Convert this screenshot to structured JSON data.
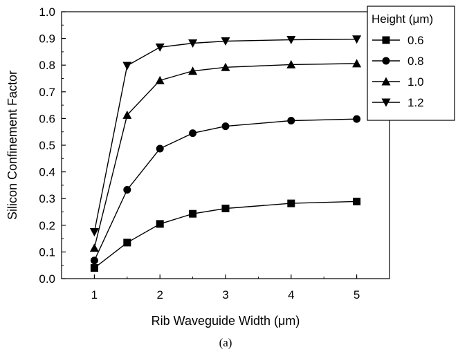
{
  "chart_data": {
    "type": "line",
    "xlabel": "Rib Waveguide Width (μm)",
    "ylabel": "Silicon Confinement Factor",
    "caption": "(a)",
    "xlim": [
      0.5,
      5.5
    ],
    "ylim": [
      0.0,
      1.0
    ],
    "x_ticks": [
      1,
      2,
      3,
      4,
      5
    ],
    "y_ticks": [
      0.0,
      0.1,
      0.2,
      0.3,
      0.4,
      0.5,
      0.6,
      0.7,
      0.8,
      0.9,
      1.0
    ],
    "x_tick_labels": [
      "1",
      "2",
      "3",
      "4",
      "5"
    ],
    "y_tick_labels": [
      "0.0",
      "0.1",
      "0.2",
      "0.3",
      "0.4",
      "0.5",
      "0.6",
      "0.7",
      "0.8",
      "0.9",
      "1.0"
    ],
    "grid": false,
    "legend": {
      "title": "Height (μm)",
      "placement": "top-right, outside plot"
    },
    "x": [
      1,
      1.5,
      2,
      2.5,
      3,
      4,
      5
    ],
    "series": [
      {
        "name": "0.6",
        "marker": "square",
        "values": [
          0.04,
          0.135,
          0.205,
          0.243,
          0.263,
          0.282,
          0.289
        ]
      },
      {
        "name": "0.8",
        "marker": "circle",
        "values": [
          0.068,
          0.333,
          0.487,
          0.545,
          0.571,
          0.592,
          0.598
        ]
      },
      {
        "name": "1.0",
        "marker": "triangle-up",
        "values": [
          0.115,
          0.613,
          0.743,
          0.778,
          0.792,
          0.802,
          0.806
        ]
      },
      {
        "name": "1.2",
        "marker": "triangle-down",
        "values": [
          0.175,
          0.798,
          0.867,
          0.882,
          0.89,
          0.895,
          0.897
        ]
      }
    ],
    "colors": {
      "line": "#000000",
      "marker": "#000000",
      "background": "#ffffff"
    }
  }
}
